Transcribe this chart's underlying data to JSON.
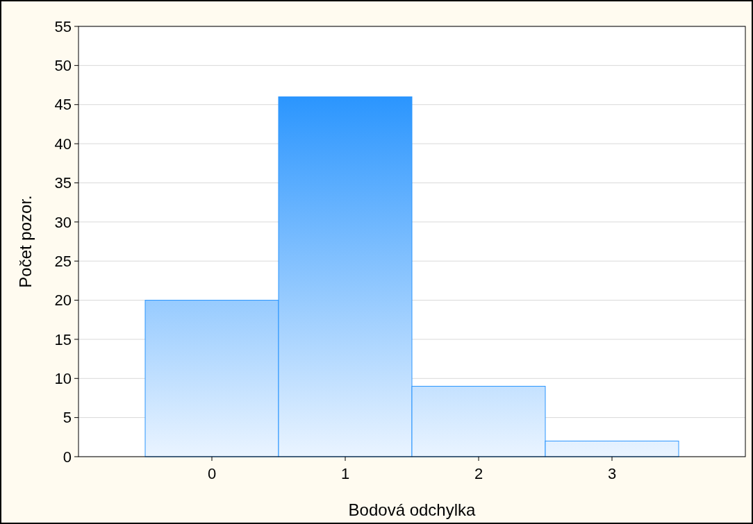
{
  "chart_data": {
    "type": "histogram",
    "xlabel": "Bodová odchylka",
    "ylabel": "Počet pozor.",
    "bins": [
      -0.5,
      0.5,
      1.5,
      2.5,
      3.5
    ],
    "values": [
      20,
      46,
      9,
      2
    ],
    "color": "#2a95fe",
    "xlim": [
      -1,
      4
    ],
    "xticks": [
      0,
      1,
      2,
      3
    ],
    "ylim": [
      0,
      55
    ],
    "yticks": [
      0,
      5,
      10,
      15,
      20,
      25,
      30,
      35,
      40,
      45,
      50,
      55
    ],
    "grid": "y"
  }
}
